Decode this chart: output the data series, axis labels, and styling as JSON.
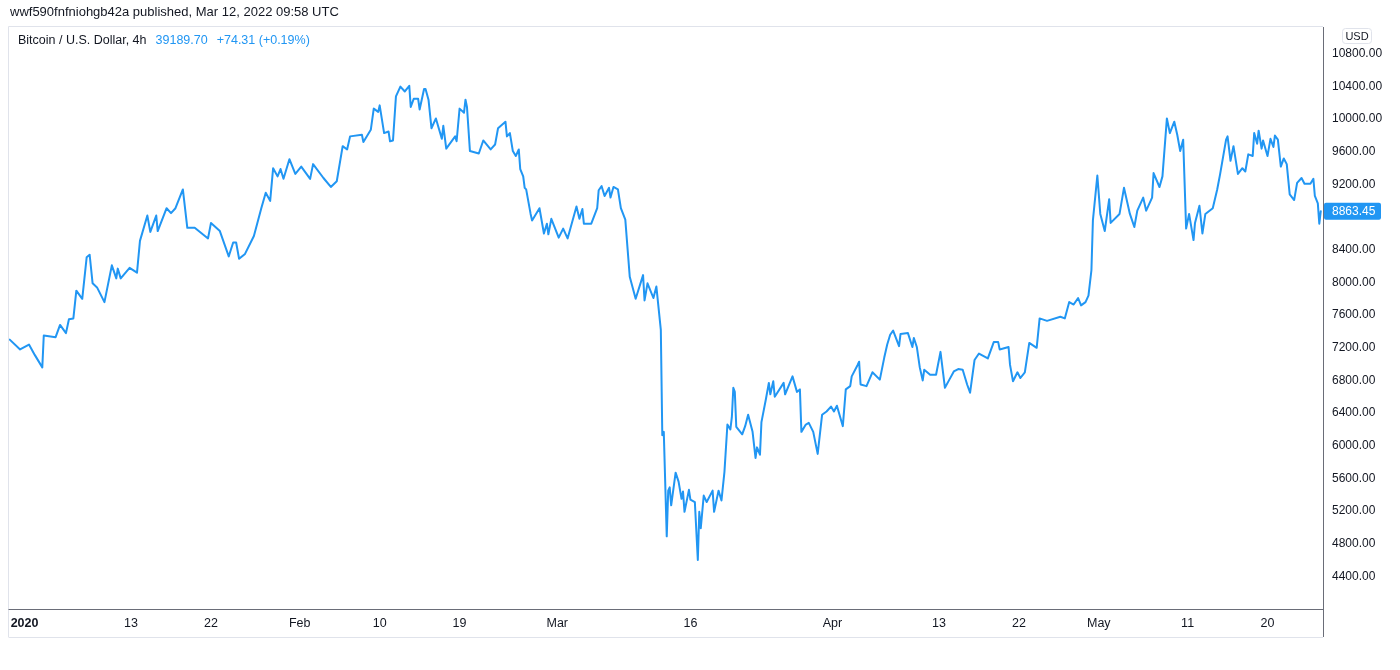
{
  "chart_data": {
    "type": "line",
    "title": "Bitcoin / U.S. Dollar, 4h",
    "ylabel": "USD",
    "annotations": [
      "wwf590fnfniohgb42a published, Mar 12, 2022 09:58 UTC",
      "39189.70",
      "+74.31 (+0.19%)",
      {
        "text": "8863.45",
        "x": "2020-05-26T00:00",
        "y": 8863.45
      }
    ],
    "color": "#2196f3",
    "xlim": [
      "2019-12-30T06:00",
      "2020-05-26T06:00"
    ],
    "ylim": [
      3990,
      11120
    ],
    "xticks": [
      {
        "value": "2020-01-01",
        "label": "2020"
      },
      {
        "value": "2020-01-13",
        "label": "13"
      },
      {
        "value": "2020-01-22",
        "label": "22"
      },
      {
        "value": "2020-02-01",
        "label": "Feb"
      },
      {
        "value": "2020-02-10",
        "label": "10"
      },
      {
        "value": "2020-02-19",
        "label": "19"
      },
      {
        "value": "2020-03-01",
        "label": "Mar"
      },
      {
        "value": "2020-03-16",
        "label": "16"
      },
      {
        "value": "2020-04-01",
        "label": "Apr"
      },
      {
        "value": "2020-04-13",
        "label": "13"
      },
      {
        "value": "2020-04-22",
        "label": "22"
      },
      {
        "value": "2020-05-01",
        "label": "May"
      },
      {
        "value": "2020-05-11",
        "label": "11"
      },
      {
        "value": "2020-05-20",
        "label": "20"
      }
    ],
    "yticks": [
      {
        "value": 4400,
        "label": "4400.00"
      },
      {
        "value": 4800,
        "label": "4800.00"
      },
      {
        "value": 5200,
        "label": "5200.00"
      },
      {
        "value": 5600,
        "label": "5600.00"
      },
      {
        "value": 6000,
        "label": "6000.00"
      },
      {
        "value": 6400,
        "label": "6400.00"
      },
      {
        "value": 6800,
        "label": "6800.00"
      },
      {
        "value": 7200,
        "label": "7200.00"
      },
      {
        "value": 7600,
        "label": "7600.00"
      },
      {
        "value": 8000,
        "label": "8000.00"
      },
      {
        "value": 8400,
        "label": "8400.00"
      },
      {
        "value": 9200,
        "label": "9200.00"
      },
      {
        "value": 9600,
        "label": "9600.00"
      },
      {
        "value": 10000,
        "label": "10000.00"
      },
      {
        "value": 10400,
        "label": "10400.00"
      },
      {
        "value": 10800,
        "label": "10800.00"
      }
    ],
    "x": [
      "2019-12-30T08:00",
      "2019-12-31T12:00",
      "2020-01-01T12:00",
      "2020-01-02T04:00",
      "2020-01-03T00:00",
      "2020-01-03T04:00",
      "2020-01-04T12:00",
      "2020-01-05T00:00",
      "2020-01-05T16:00",
      "2020-01-06T00:00",
      "2020-01-06T12:00",
      "2020-01-06T20:00",
      "2020-01-07T12:00",
      "2020-01-08T00:00",
      "2020-01-08T08:00",
      "2020-01-08T16:00",
      "2020-01-09T04:00",
      "2020-01-10T00:00",
      "2020-01-10T20:00",
      "2020-01-11T08:00",
      "2020-01-11T12:00",
      "2020-01-11T20:00",
      "2020-01-12T20:00",
      "2020-01-13T16:00",
      "2020-01-14T00:00",
      "2020-01-14T20:00",
      "2020-01-15T04:00",
      "2020-01-15T20:00",
      "2020-01-16T00:00",
      "2020-01-17T00:00",
      "2020-01-17T12:00",
      "2020-01-18T00:00",
      "2020-01-18T20:00",
      "2020-01-19T08:00",
      "2020-01-20T04:00",
      "2020-01-21T16:00",
      "2020-01-22T00:00",
      "2020-01-23T00:00",
      "2020-01-24T00:00",
      "2020-01-24T12:00",
      "2020-01-24T20:00",
      "2020-01-25T04:00",
      "2020-01-25T20:00",
      "2020-01-26T20:00",
      "2020-01-27T16:00",
      "2020-01-28T04:00",
      "2020-01-28T16:00",
      "2020-01-29T00:00",
      "2020-01-29T12:00",
      "2020-01-29T20:00",
      "2020-01-30T04:00",
      "2020-01-30T20:00",
      "2020-01-31T12:00",
      "2020-02-01T04:00",
      "2020-02-02T04:00",
      "2020-02-02T12:00",
      "2020-02-03T16:00",
      "2020-02-04T12:00",
      "2020-02-05T04:00",
      "2020-02-05T20:00",
      "2020-02-06T08:00",
      "2020-02-06T16:00",
      "2020-02-08T00:00",
      "2020-02-08T04:00",
      "2020-02-09T00:00",
      "2020-02-09T08:00",
      "2020-02-09T20:00",
      "2020-02-10T00:00",
      "2020-02-10T12:00",
      "2020-02-11T00:00",
      "2020-02-11T04:00",
      "2020-02-11T12:00",
      "2020-02-11T20:00",
      "2020-02-12T08:00",
      "2020-02-12T20:00",
      "2020-02-13T08:00",
      "2020-02-13T12:00",
      "2020-02-13T20:00",
      "2020-02-14T08:00",
      "2020-02-14T12:00",
      "2020-02-15T00:00",
      "2020-02-15T04:00",
      "2020-02-15T12:00",
      "2020-02-15T20:00",
      "2020-02-16T08:00",
      "2020-02-17T00:00",
      "2020-02-17T04:00",
      "2020-02-17T12:00",
      "2020-02-18T12:00",
      "2020-02-18T16:00",
      "2020-02-19T00:00",
      "2020-02-19T12:00",
      "2020-02-19T16:00",
      "2020-02-19T20:00",
      "2020-02-20T04:00",
      "2020-02-21T04:00",
      "2020-02-21T16:00",
      "2020-02-22T12:00",
      "2020-02-23T00:00",
      "2020-02-23T08:00",
      "2020-02-24T04:00",
      "2020-02-24T08:00",
      "2020-02-24T16:00",
      "2020-02-25T00:00",
      "2020-02-25T08:00",
      "2020-02-25T16:00",
      "2020-02-25T20:00",
      "2020-02-26T04:00",
      "2020-02-26T08:00",
      "2020-02-26T12:00",
      "2020-02-27T00:00",
      "2020-02-27T04:00",
      "2020-02-28T00:00",
      "2020-02-28T12:00",
      "2020-02-28T20:00",
      "2020-02-29T00:00",
      "2020-02-29T08:00",
      "2020-03-01T04:00",
      "2020-03-01T16:00",
      "2020-03-02T04:00",
      "2020-03-03T04:00",
      "2020-03-03T12:00",
      "2020-03-03T20:00",
      "2020-03-04T00:00",
      "2020-03-04T20:00",
      "2020-03-05T12:00",
      "2020-03-05T16:00",
      "2020-03-06T00:00",
      "2020-03-06T08:00",
      "2020-03-06T20:00",
      "2020-03-07T00:00",
      "2020-03-07T08:00",
      "2020-03-07T20:00",
      "2020-03-08T04:00",
      "2020-03-08T16:00",
      "2020-03-09T04:00",
      "2020-03-09T20:00",
      "2020-03-10T16:00",
      "2020-03-10T20:00",
      "2020-03-11T04:00",
      "2020-03-11T20:00",
      "2020-03-12T04:00",
      "2020-03-12T16:00",
      "2020-03-12T20:00",
      "2020-03-13T00:00",
      "2020-03-13T08:00",
      "2020-03-13T12:00",
      "2020-03-13T16:00",
      "2020-03-13T20:00",
      "2020-03-14T08:00",
      "2020-03-14T16:00",
      "2020-03-15T00:00",
      "2020-03-15T04:00",
      "2020-03-15T08:00",
      "2020-03-15T20:00",
      "2020-03-16T00:00",
      "2020-03-16T12:00",
      "2020-03-16T20:00",
      "2020-03-17T00:00",
      "2020-03-17T04:00",
      "2020-03-17T12:00",
      "2020-03-17T20:00",
      "2020-03-18T12:00",
      "2020-03-18T16:00",
      "2020-03-19T04:00",
      "2020-03-19T12:00",
      "2020-03-19T20:00",
      "2020-03-20T04:00",
      "2020-03-20T12:00",
      "2020-03-20T16:00",
      "2020-03-20T20:00",
      "2020-03-21T00:00",
      "2020-03-21T04:00",
      "2020-03-21T20:00",
      "2020-03-22T04:00",
      "2020-03-22T12:00",
      "2020-03-23T00:00",
      "2020-03-23T08:00",
      "2020-03-23T12:00",
      "2020-03-23T20:00",
      "2020-03-24T00:00",
      "2020-03-24T12:00",
      "2020-03-24T20:00",
      "2020-03-25T00:00",
      "2020-03-25T08:00",
      "2020-03-25T12:00",
      "2020-03-26T12:00",
      "2020-03-26T16:00",
      "2020-03-27T12:00",
      "2020-03-28T00:00",
      "2020-03-28T08:00",
      "2020-03-28T12:00",
      "2020-03-29T00:00",
      "2020-03-29T08:00",
      "2020-03-29T20:00",
      "2020-03-30T08:00",
      "2020-03-30T20:00",
      "2020-03-31T08:00",
      "2020-03-31T20:00",
      "2020-04-01T04:00",
      "2020-04-01T12:00",
      "2020-04-02T04:00",
      "2020-04-02T12:00",
      "2020-04-03T00:00",
      "2020-04-03T04:00",
      "2020-04-03T20:00",
      "2020-04-04T00:00",
      "2020-04-04T04:00",
      "2020-04-04T20:00",
      "2020-04-05T12:00",
      "2020-04-06T08:00",
      "2020-04-06T20:00",
      "2020-04-07T04:00",
      "2020-04-07T12:00",
      "2020-04-07T20:00",
      "2020-04-08T12:00",
      "2020-04-08T16:00",
      "2020-04-09T12:00",
      "2020-04-10T00:00",
      "2020-04-10T04:00",
      "2020-04-10T12:00",
      "2020-04-10T20:00",
      "2020-04-11T04:00",
      "2020-04-11T08:00",
      "2020-04-12T00:00",
      "2020-04-12T16:00",
      "2020-04-13T04:00",
      "2020-04-13T16:00",
      "2020-04-14T04:00",
      "2020-04-14T16:00",
      "2020-04-15T04:00",
      "2020-04-15T16:00",
      "2020-04-16T04:00",
      "2020-04-16T12:00",
      "2020-04-17T00:00",
      "2020-04-17T12:00",
      "2020-04-18T12:00",
      "2020-04-19T04:00",
      "2020-04-19T16:00",
      "2020-04-19T20:00",
      "2020-04-20T20:00",
      "2020-04-21T00:00",
      "2020-04-21T08:00",
      "2020-04-21T20:00",
      "2020-04-22T04:00",
      "2020-04-22T16:00",
      "2020-04-23T04:00",
      "2020-04-24T00:00",
      "2020-04-24T08:00",
      "2020-04-25T04:00",
      "2020-04-26T16:00",
      "2020-04-27T04:00",
      "2020-04-27T16:00",
      "2020-04-28T04:00",
      "2020-04-28T16:00",
      "2020-04-29T00:00",
      "2020-04-29T12:00",
      "2020-04-29T20:00",
      "2020-04-30T04:00",
      "2020-04-30T08:00",
      "2020-04-30T20:00",
      "2020-05-01T04:00",
      "2020-05-01T16:00",
      "2020-05-02T04:00",
      "2020-05-02T08:00",
      "2020-05-03T08:00",
      "2020-05-03T20:00",
      "2020-05-04T12:00",
      "2020-05-05T00:00",
      "2020-05-05T08:00",
      "2020-05-06T00:00",
      "2020-05-06T08:00",
      "2020-05-07T00:00",
      "2020-05-07T04:00",
      "2020-05-07T20:00",
      "2020-05-08T04:00",
      "2020-05-08T16:00",
      "2020-05-09T00:00",
      "2020-05-09T12:00",
      "2020-05-09T20:00",
      "2020-05-10T04:00",
      "2020-05-10T12:00",
      "2020-05-10T20:00",
      "2020-05-11T04:00",
      "2020-05-11T16:00",
      "2020-05-11T20:00",
      "2020-05-12T08:00",
      "2020-05-12T16:00",
      "2020-05-13T00:00",
      "2020-05-13T20:00",
      "2020-05-14T08:00",
      "2020-05-14T16:00",
      "2020-05-15T08:00",
      "2020-05-15T12:00",
      "2020-05-15T20:00",
      "2020-05-16T04:00",
      "2020-05-16T16:00",
      "2020-05-17T04:00",
      "2020-05-17T12:00",
      "2020-05-17T20:00",
      "2020-05-18T08:00",
      "2020-05-18T12:00",
      "2020-05-18T20:00",
      "2020-05-19T00:00",
      "2020-05-19T08:00",
      "2020-05-19T12:00",
      "2020-05-20T00:00",
      "2020-05-20T08:00",
      "2020-05-20T16:00",
      "2020-05-20T20:00",
      "2020-05-21T04:00",
      "2020-05-21T12:00",
      "2020-05-21T20:00",
      "2020-05-22T04:00",
      "2020-05-22T12:00",
      "2020-05-23T00:00",
      "2020-05-23T08:00",
      "2020-05-23T20:00",
      "2020-05-24T04:00",
      "2020-05-24T20:00",
      "2020-05-25T04:00",
      "2020-05-25T08:00",
      "2020-05-25T16:00",
      "2020-05-25T20:00",
      "2020-05-26T00:00"
    ],
    "values": [
      7290,
      7170,
      7230,
      7100,
      6950,
      7340,
      7320,
      7470,
      7370,
      7540,
      7550,
      7890,
      7790,
      8300,
      8330,
      7980,
      7930,
      7750,
      8200,
      8040,
      8160,
      8040,
      8170,
      8110,
      8500,
      8810,
      8610,
      8810,
      8620,
      8900,
      8840,
      8900,
      9130,
      8660,
      8660,
      8530,
      8720,
      8620,
      8310,
      8480,
      8480,
      8280,
      8340,
      8560,
      8900,
      9090,
      8990,
      9390,
      9290,
      9380,
      9260,
      9500,
      9320,
      9410,
      9260,
      9440,
      9270,
      9160,
      9230,
      9660,
      9620,
      9780,
      9800,
      9710,
      9860,
      10120,
      10080,
      10160,
      9820,
      9840,
      9720,
      9730,
      10270,
      10390,
      10330,
      10400,
      10140,
      10240,
      10240,
      10110,
      10360,
      10360,
      10230,
      9880,
      10000,
      9750,
      9910,
      9630,
      9780,
      9720,
      10120,
      10070,
      10230,
      10140,
      9600,
      9570,
      9730,
      9620,
      9680,
      9880,
      9960,
      9780,
      9820,
      9600,
      9540,
      9620,
      9380,
      9290,
      9150,
      9130,
      8830,
      8750,
      8900,
      8590,
      8710,
      8580,
      8770,
      8540,
      8650,
      8530,
      8920,
      8770,
      8890,
      8710,
      8710,
      8900,
      9120,
      9170,
      9050,
      9150,
      9030,
      9160,
      9130,
      8900,
      8760,
      8060,
      7790,
      8080,
      7770,
      7980,
      7800,
      7940,
      7410,
      6120,
      6160,
      4880,
      5440,
      5480,
      5260,
      5660,
      5550,
      5340,
      5430,
      5180,
      5450,
      5330,
      5300,
      4590,
      5180,
      4980,
      5380,
      5300,
      5440,
      5180,
      5440,
      5320,
      5670,
      6250,
      6190,
      6340,
      6700,
      6650,
      6220,
      6130,
      6230,
      6370,
      6160,
      5840,
      5970,
      5880,
      6280,
      6560,
      6760,
      6620,
      6780,
      6590,
      6760,
      6620,
      6840,
      6650,
      6680,
      6160,
      6250,
      6270,
      6160,
      5890,
      6370,
      6410,
      6470,
      6410,
      6480,
      6230,
      6680,
      6720,
      6840,
      6980,
      7020,
      6740,
      6720,
      6890,
      6800,
      7070,
      7230,
      7350,
      7400,
      7210,
      7360,
      7370,
      7200,
      7310,
      7200,
      6950,
      6790,
      6920,
      6860,
      6860,
      7140,
      6700,
      6800,
      6900,
      6930,
      6920,
      6740,
      6640,
      7040,
      7120,
      7060,
      7260,
      7260,
      7170,
      7200,
      6980,
      6780,
      6890,
      6820,
      6890,
      7250,
      7190,
      7550,
      7520,
      7570,
      7550,
      7750,
      7720,
      7800,
      7710,
      7750,
      7830,
      8140,
      8750,
      9300,
      8830,
      8620,
      9010,
      8720,
      8830,
      9150,
      8830,
      8670,
      8870,
      9030,
      8870,
      9030,
      9330,
      9160,
      9290,
      10000,
      9820,
      9960,
      9800,
      9600,
      9740,
      8650,
      8830,
      8510,
      8720,
      8930,
      8590,
      8830,
      8900,
      9130,
      9320,
      9740,
      9780,
      9480,
      9660,
      9320,
      9390,
      9350,
      9560,
      9540,
      9820,
      9690,
      9850,
      9630,
      9730,
      9540,
      9750,
      9650,
      9790,
      9740,
      9410,
      9510,
      9440,
      9070,
      9000,
      9210,
      9270,
      9200,
      9200,
      9260,
      9050,
      8960,
      8710,
      8863.45
    ]
  }
}
